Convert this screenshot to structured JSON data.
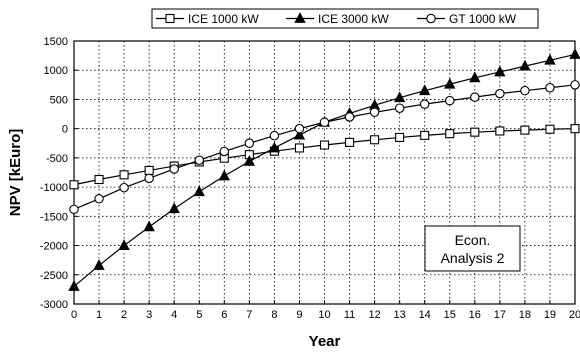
{
  "chart_data": {
    "type": "line",
    "xlabel": "Year",
    "ylabel": "NPV [kEuro]",
    "x": [
      0,
      1,
      2,
      3,
      4,
      5,
      6,
      7,
      8,
      9,
      10,
      11,
      12,
      13,
      14,
      15,
      16,
      17,
      18,
      19,
      20
    ],
    "xlim": [
      0,
      20
    ],
    "ylim": [
      -3000,
      1500
    ],
    "x_ticks": [
      0,
      1,
      2,
      3,
      4,
      5,
      6,
      7,
      8,
      9,
      10,
      11,
      12,
      13,
      14,
      15,
      16,
      17,
      18,
      19,
      20
    ],
    "y_ticks": [
      -3000,
      -2500,
      -2000,
      -1500,
      -1000,
      -500,
      0,
      500,
      1000,
      1500
    ],
    "grid": true,
    "legend_position": "top",
    "annotation": {
      "line1": "Econ.",
      "line2": "Analysis 2"
    },
    "series": [
      {
        "name": "ICE 1000 kW",
        "marker": "square-open",
        "values": [
          -960,
          -870,
          -790,
          -715,
          -640,
          -570,
          -505,
          -445,
          -385,
          -330,
          -280,
          -235,
          -190,
          -150,
          -115,
          -85,
          -60,
          -40,
          -25,
          -10,
          0
        ]
      },
      {
        "name": "ICE 3000 kW",
        "marker": "triangle-filled",
        "values": [
          -2700,
          -2340,
          -2000,
          -1680,
          -1370,
          -1080,
          -810,
          -560,
          -330,
          -110,
          110,
          260,
          400,
          530,
          650,
          760,
          870,
          970,
          1070,
          1170,
          1270
        ]
      },
      {
        "name": "GT 1000 kW",
        "marker": "circle-open",
        "values": [
          -1380,
          -1200,
          -1010,
          -850,
          -690,
          -540,
          -390,
          -250,
          -120,
          0,
          110,
          200,
          280,
          350,
          420,
          480,
          540,
          600,
          650,
          700,
          750
        ]
      }
    ]
  }
}
